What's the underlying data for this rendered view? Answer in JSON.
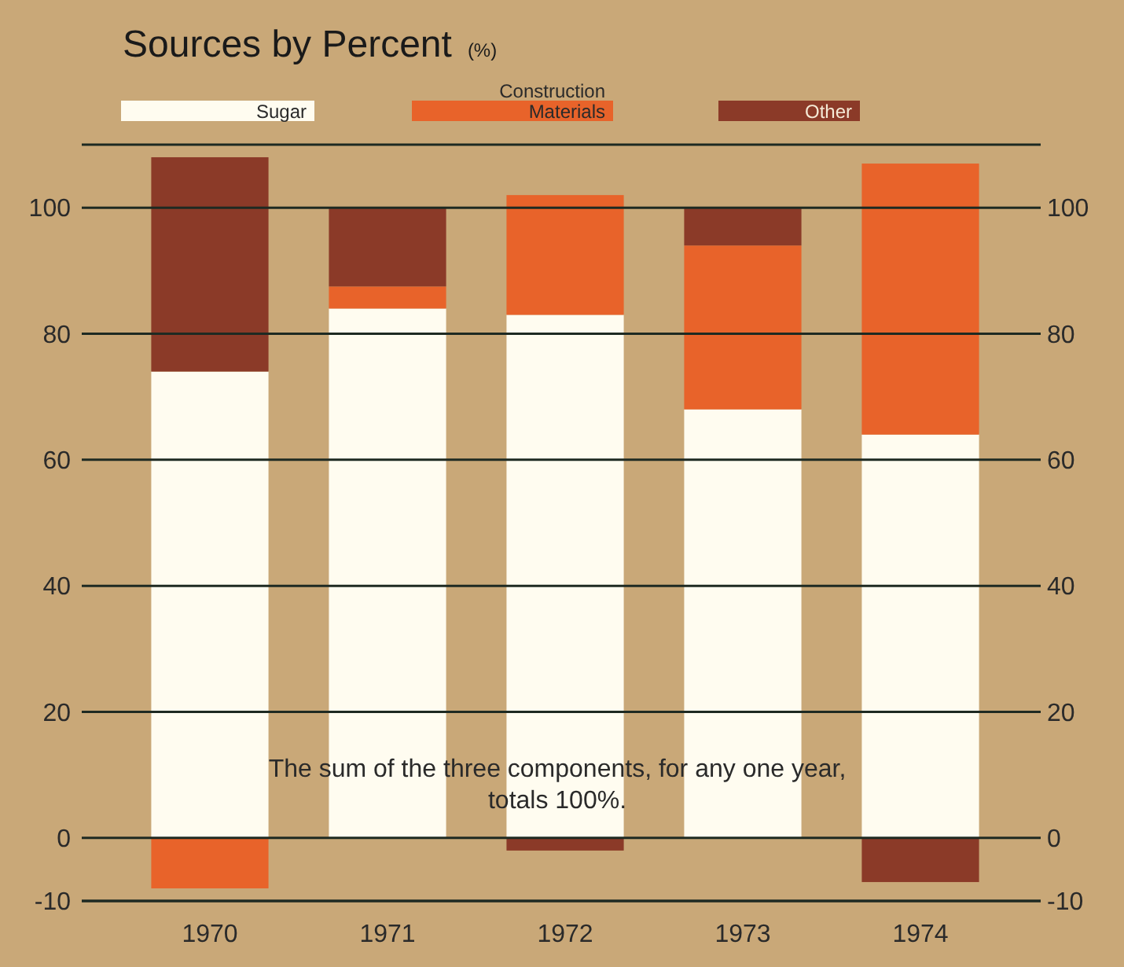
{
  "chart_data": {
    "type": "bar",
    "title": "Sources by Percent",
    "subtitle": "(%)",
    "categories": [
      "1970",
      "1971",
      "1972",
      "1973",
      "1974"
    ],
    "series": [
      {
        "name": "Sugar",
        "color": "#fffcf0",
        "values": [
          74,
          84,
          83,
          68,
          64
        ]
      },
      {
        "name": "Construction Materials",
        "color": "#e8632a",
        "values": [
          -8,
          3.5,
          19,
          26,
          43
        ]
      },
      {
        "name": "Other",
        "color": "#8b3a28",
        "values": [
          34,
          12.5,
          -2,
          6,
          -7
        ]
      }
    ],
    "stacked": true,
    "ylim": [
      -10,
      110
    ],
    "yticks": [
      {
        "value": -10,
        "label": "-10"
      },
      0,
      20,
      40,
      60,
      80,
      100
    ],
    "y2lim": [
      -10,
      110
    ],
    "y2ticks": [
      {
        "value": -10,
        "label": "-10"
      },
      0,
      20,
      40,
      60,
      80,
      100
    ],
    "grid": "y",
    "legend": "top",
    "annotations": [
      "The sum of the three components, for any one year, totals 100%."
    ]
  }
}
